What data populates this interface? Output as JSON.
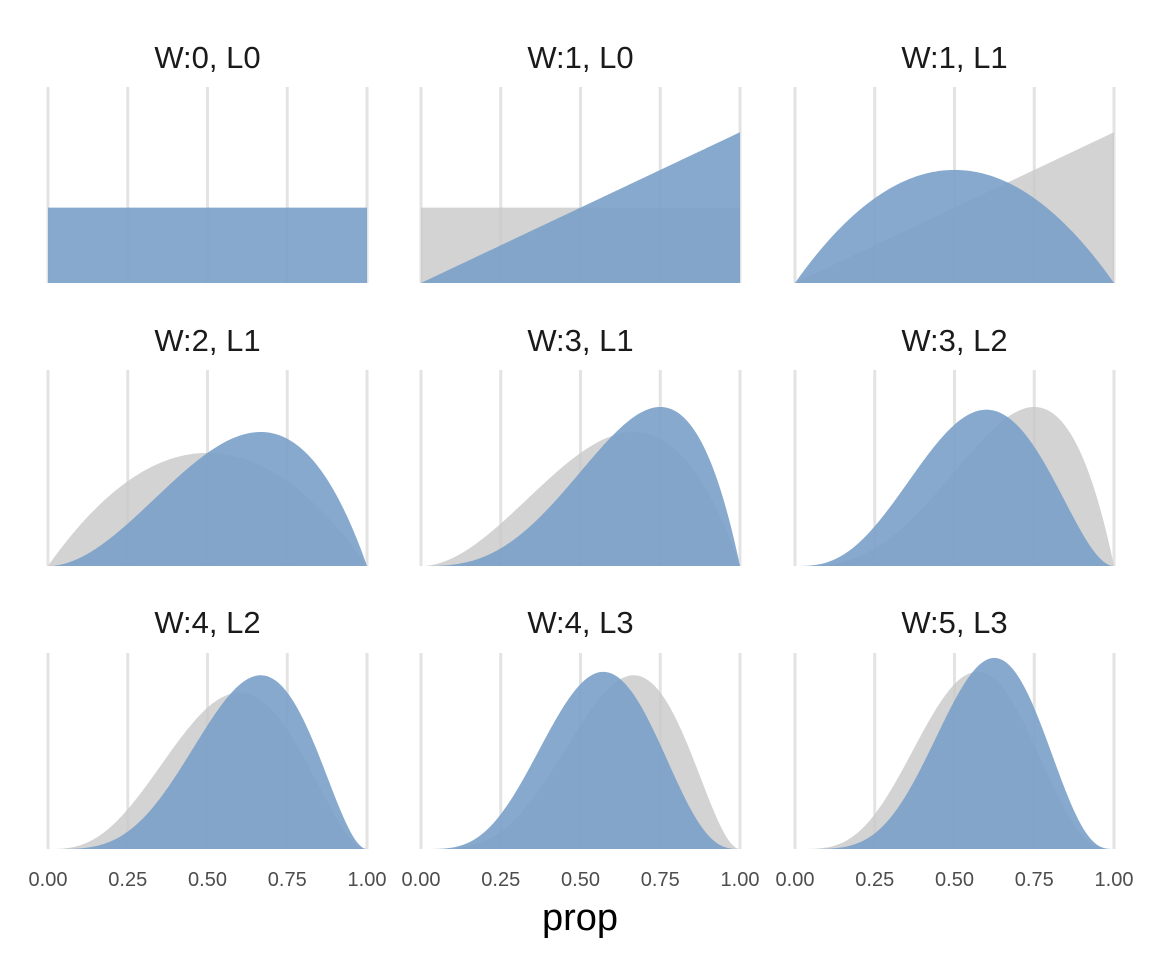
{
  "chart_data": {
    "type": "area",
    "xlabel": "prop",
    "xlim": [
      0,
      1
    ],
    "x_ticks": [
      0,
      0.25,
      0.5,
      0.75,
      1
    ],
    "x_tick_labels": [
      "0.00",
      "0.25",
      "0.50",
      "0.75",
      "1.00"
    ],
    "y_axis_visible": false,
    "grid": "vertical major gridlines only",
    "legend": "none",
    "colors": {
      "posterior": "#7aa0c9",
      "prior": "#c8c8c8"
    },
    "series_description_note_free": true,
    "panels": [
      {
        "title": "W:0, L0",
        "prior_counts": null,
        "posterior_counts": [
          0,
          0
        ]
      },
      {
        "title": "W:1, L0",
        "prior_counts": [
          0,
          0
        ],
        "posterior_counts": [
          1,
          0
        ]
      },
      {
        "title": "W:1, L1",
        "prior_counts": [
          1,
          0
        ],
        "posterior_counts": [
          1,
          1
        ]
      },
      {
        "title": "W:2, L1",
        "prior_counts": [
          1,
          1
        ],
        "posterior_counts": [
          2,
          1
        ]
      },
      {
        "title": "W:3, L1",
        "prior_counts": [
          2,
          1
        ],
        "posterior_counts": [
          3,
          1
        ]
      },
      {
        "title": "W:3, L2",
        "prior_counts": [
          3,
          1
        ],
        "posterior_counts": [
          3,
          2
        ]
      },
      {
        "title": "W:4, L2",
        "prior_counts": [
          3,
          2
        ],
        "posterior_counts": [
          4,
          2
        ]
      },
      {
        "title": "W:4, L3",
        "prior_counts": [
          4,
          2
        ],
        "posterior_counts": [
          4,
          3
        ]
      },
      {
        "title": "W:5, L3",
        "prior_counts": [
          4,
          3
        ],
        "posterior_counts": [
          5,
          3
        ]
      }
    ]
  }
}
